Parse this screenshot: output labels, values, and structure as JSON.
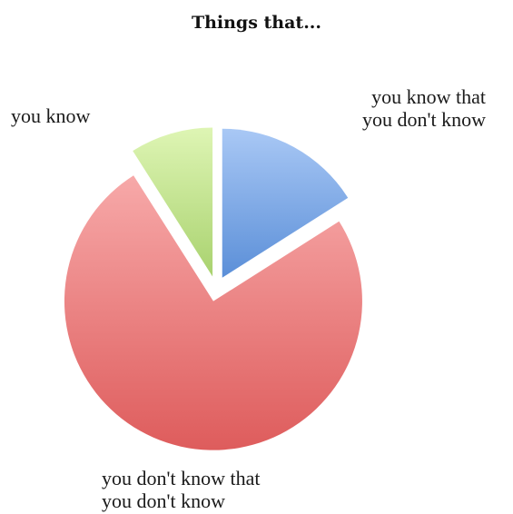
{
  "chart_data": {
    "type": "pie",
    "title": "Things that...",
    "exploded": true,
    "slices": [
      {
        "label_lines": [
          "you know that",
          "you don't know"
        ],
        "value": 16,
        "color_light": "#a9c8f5",
        "color_dark": "#5b8fd8"
      },
      {
        "label_lines": [
          "you don't know that",
          "you don't know"
        ],
        "value": 75,
        "color_light": "#f7a9a9",
        "color_dark": "#de5c5c"
      },
      {
        "label_lines": [
          "you know"
        ],
        "value": 9,
        "color_light": "#def5b4",
        "color_dark": "#a9d26f"
      }
    ]
  }
}
